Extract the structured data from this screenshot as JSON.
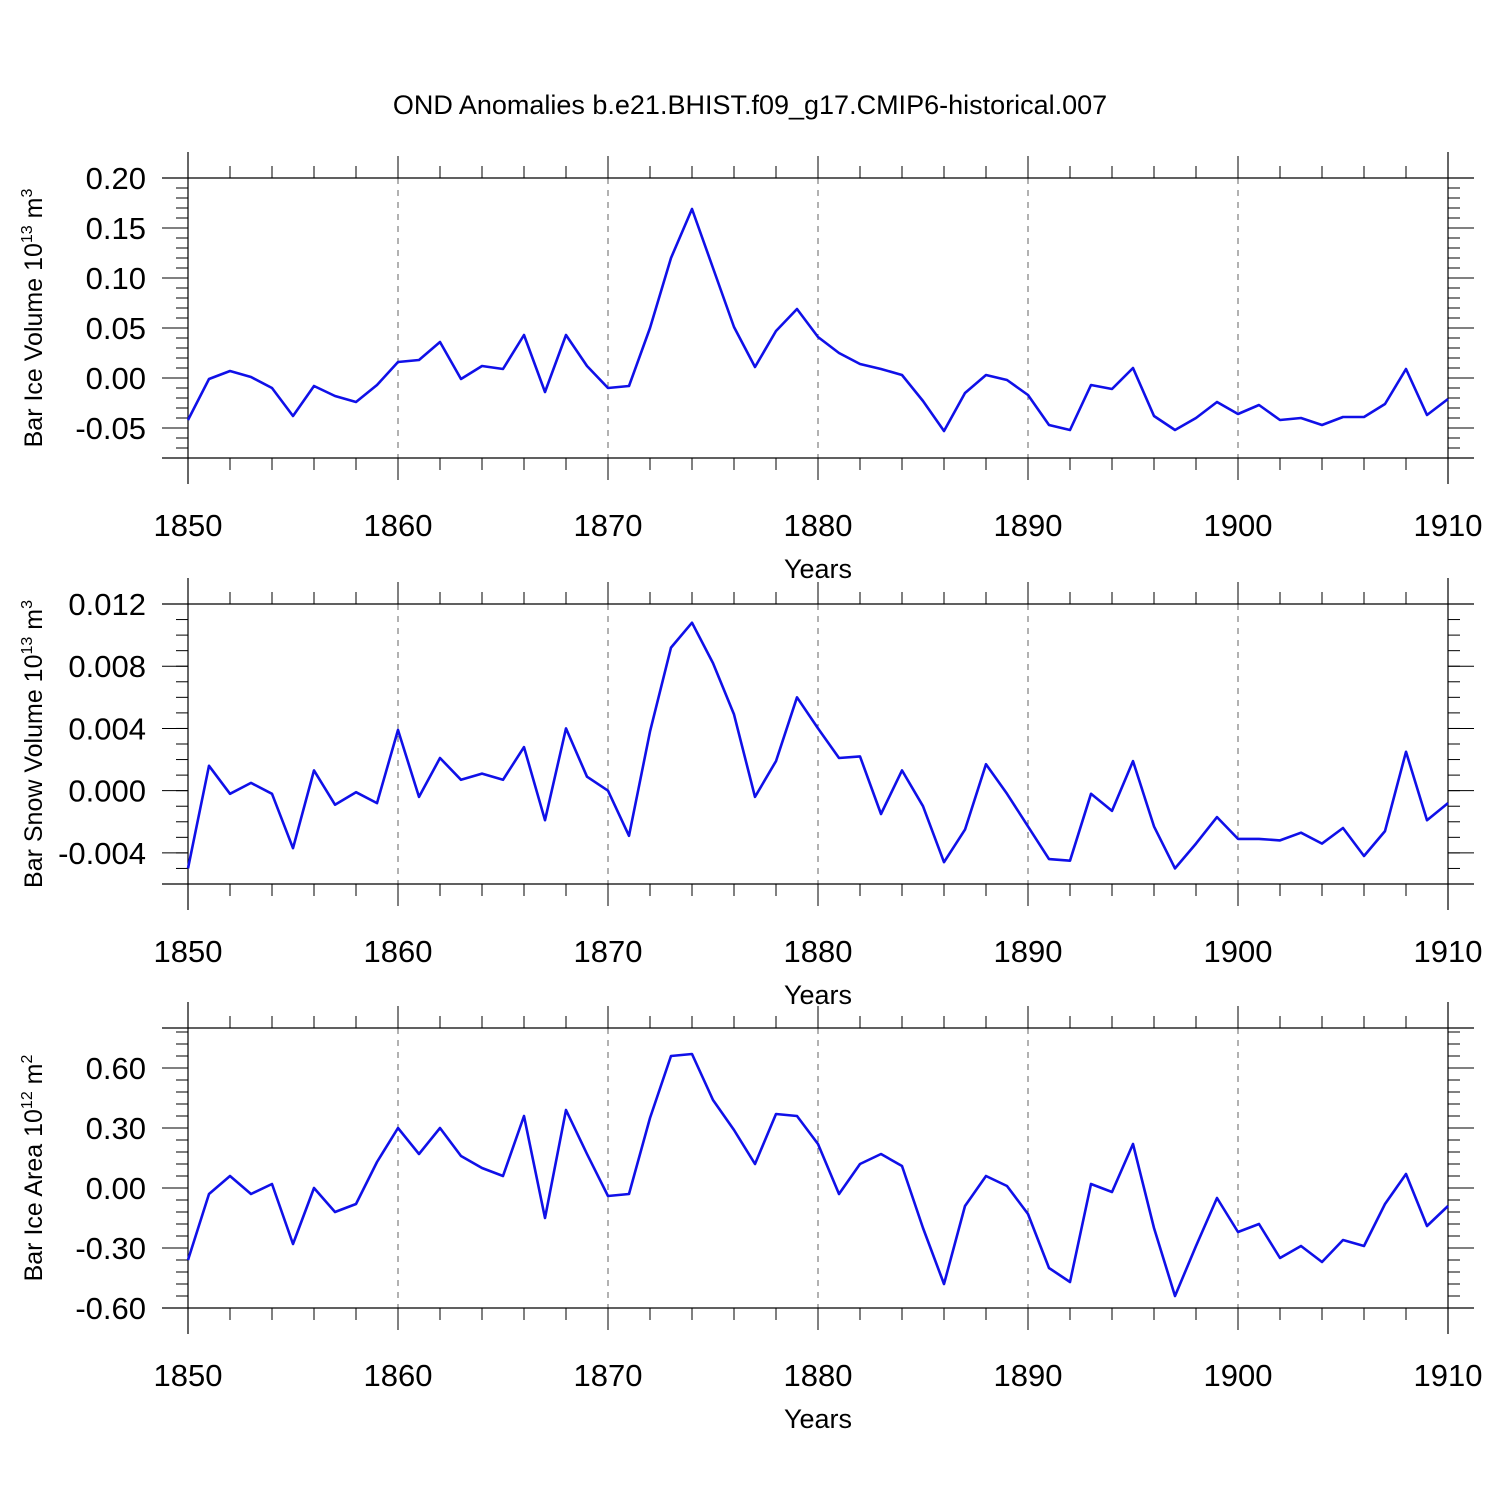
{
  "chart_data": {
    "title": "OND Anomalies b.e21.BHIST.f09_g17.CMIP6-historical.007",
    "panels": [
      {
        "type": "line",
        "ylabel": {
          "main": "Bar Ice Volume 10",
          "exp": "13",
          "unit": " m",
          "unit_exp": "3"
        },
        "xlabel": "Years",
        "xlim": [
          1850,
          1910
        ],
        "ylim": [
          -0.08,
          0.2
        ],
        "yticks": [
          0.2,
          0.15,
          0.1,
          0.05,
          0.0,
          -0.05
        ],
        "ytick_labels": [
          "0.20",
          "0.15",
          "0.10",
          "0.05",
          "0.00",
          "-0.05"
        ],
        "ytick_major_values": [
          0.2,
          0.15,
          0.1,
          0.05,
          0.0,
          -0.05
        ],
        "y_minor_step": 0.01,
        "xticks": [
          1850,
          1860,
          1870,
          1880,
          1890,
          1900,
          1910
        ],
        "xtick_labels": [
          "1850",
          "1860",
          "1870",
          "1880",
          "1890",
          "1900",
          "1910"
        ],
        "color": "#1010e8",
        "series": [
          {
            "x_start": 1850,
            "values": [
              -0.042,
              -0.001,
              0.007,
              0.001,
              -0.01,
              -0.038,
              -0.008,
              -0.018,
              -0.024,
              -0.007,
              0.016,
              0.018,
              0.036,
              -0.001,
              0.012,
              0.009,
              0.043,
              -0.014,
              0.043,
              0.012,
              -0.01,
              -0.008,
              0.05,
              0.12,
              0.169,
              0.11,
              0.051,
              0.011,
              0.047,
              0.069,
              0.041,
              0.025,
              0.014,
              0.009,
              0.003,
              -0.023,
              -0.053,
              -0.015,
              0.003,
              -0.002,
              -0.017,
              -0.047,
              -0.052,
              -0.007,
              -0.011,
              0.01,
              -0.038,
              -0.052,
              -0.04,
              -0.024,
              -0.036,
              -0.027,
              -0.042,
              -0.04,
              -0.047,
              -0.039,
              -0.039,
              -0.026,
              0.009,
              -0.037,
              -0.021
            ]
          }
        ]
      },
      {
        "type": "line",
        "ylabel": {
          "main": "Bar Snow Volume 10",
          "exp": "13",
          "unit": " m",
          "unit_exp": "3"
        },
        "xlabel": "Years",
        "xlim": [
          1850,
          1910
        ],
        "ylim": [
          -0.006,
          0.012
        ],
        "yticks": [
          0.012,
          0.008,
          0.004,
          0.0,
          -0.004
        ],
        "ytick_labels": [
          "0.012",
          "0.008",
          "0.004",
          "0.000",
          "-0.004"
        ],
        "y_minor_step": 0.001,
        "xticks": [
          1850,
          1860,
          1870,
          1880,
          1890,
          1900,
          1910
        ],
        "xtick_labels": [
          "1850",
          "1860",
          "1870",
          "1880",
          "1890",
          "1900",
          "1910"
        ],
        "color": "#1010e8",
        "series": [
          {
            "x_start": 1850,
            "values": [
              -0.005,
              0.0016,
              -0.0002,
              0.0005,
              -0.0002,
              -0.0037,
              0.0013,
              -0.0009,
              -0.0001,
              -0.0008,
              0.0039,
              -0.0004,
              0.0021,
              0.0007,
              0.0011,
              0.0007,
              0.0028,
              -0.0019,
              0.004,
              0.0009,
              0.0,
              -0.0029,
              0.0038,
              0.0092,
              0.0108,
              0.0082,
              0.0049,
              -0.0004,
              0.0019,
              0.006,
              0.004,
              0.0021,
              0.0022,
              -0.0015,
              0.0013,
              -0.001,
              -0.0046,
              -0.0025,
              0.0017,
              -0.0002,
              -0.0023,
              -0.0044,
              -0.0045,
              -0.0002,
              -0.0013,
              0.0019,
              -0.0023,
              -0.005,
              -0.0034,
              -0.0017,
              -0.0031,
              -0.0031,
              -0.0032,
              -0.0027,
              -0.0034,
              -0.0024,
              -0.0042,
              -0.0026,
              0.0025,
              -0.0019,
              -0.0008
            ]
          }
        ]
      },
      {
        "type": "line",
        "ylabel": {
          "main": "Bar Ice Area 10",
          "exp": "12",
          "unit": " m",
          "unit_exp": "2"
        },
        "xlabel": "Years",
        "xlim": [
          1850,
          1910
        ],
        "ylim": [
          -0.6,
          0.8
        ],
        "yticks": [
          0.6,
          0.3,
          0.0,
          -0.3,
          -0.6
        ],
        "ytick_labels": [
          "0.60",
          "0.30",
          "0.00",
          "-0.30",
          "-0.60"
        ],
        "y_minor_step": 0.06,
        "xticks": [
          1850,
          1860,
          1870,
          1880,
          1890,
          1900,
          1910
        ],
        "xtick_labels": [
          "1850",
          "1860",
          "1870",
          "1880",
          "1890",
          "1900",
          "1910"
        ],
        "color": "#1010e8",
        "series": [
          {
            "x_start": 1850,
            "values": [
              -0.36,
              -0.03,
              0.06,
              -0.03,
              0.02,
              -0.28,
              0.0,
              -0.12,
              -0.08,
              0.13,
              0.3,
              0.17,
              0.3,
              0.16,
              0.1,
              0.06,
              0.36,
              -0.15,
              0.39,
              0.17,
              -0.04,
              -0.03,
              0.35,
              0.66,
              0.67,
              0.44,
              0.29,
              0.12,
              0.37,
              0.36,
              0.22,
              -0.03,
              0.12,
              0.17,
              0.11,
              -0.2,
              -0.48,
              -0.09,
              0.06,
              0.01,
              -0.13,
              -0.4,
              -0.47,
              0.02,
              -0.02,
              0.22,
              -0.2,
              -0.54,
              -0.29,
              -0.05,
              -0.22,
              -0.18,
              -0.35,
              -0.29,
              -0.37,
              -0.26,
              -0.29,
              -0.08,
              0.07,
              -0.19,
              -0.09
            ]
          }
        ]
      }
    ]
  }
}
